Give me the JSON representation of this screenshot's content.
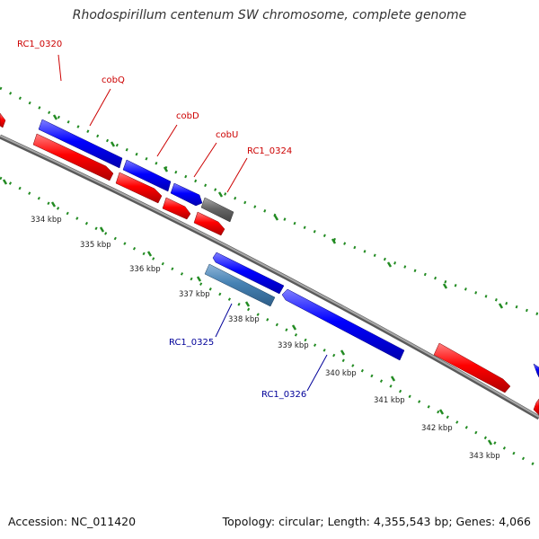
{
  "title": "Rhodospirillum centenum SW chromosome, complete genome",
  "footer": {
    "accession": "Accession: NC_011420",
    "topology": "Topology: circular; Length: 4,355,543 bp; Genes: 4,066"
  },
  "colors": {
    "forward_gene": "#0000ff",
    "reverse_gene": "#0000ff",
    "cds": "#ff0000",
    "other_gene": "#666666",
    "selected_gene": "#4682b4",
    "backbone": "#888888",
    "ticks": "#228b22",
    "forward_label": "#cc0000",
    "reverse_label": "#000099"
  },
  "forward_gene_labels": [
    "RC1_0320",
    "cobQ",
    "cobD",
    "cobU",
    "RC1_0324"
  ],
  "reverse_gene_labels": [
    "RC1_0325",
    "RC1_0326"
  ],
  "kbp_labels": [
    "334 kbp",
    "335 kbp",
    "336 kbp",
    "337 kbp",
    "338 kbp",
    "339 kbp",
    "340 kbp",
    "341 kbp",
    "342 kbp",
    "343 kbp"
  ]
}
